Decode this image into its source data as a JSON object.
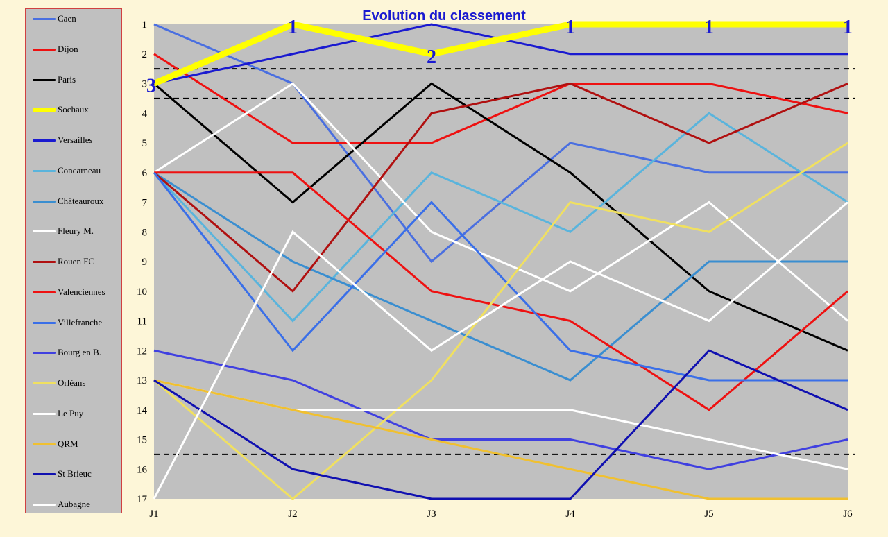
{
  "chart_data": {
    "type": "line",
    "title": "Evolution du classement",
    "x": [
      "J1",
      "J2",
      "J3",
      "J4",
      "J5",
      "J6"
    ],
    "y_ticks": [
      "1",
      "2",
      "3",
      "4",
      "5",
      "6",
      "7",
      "8",
      "9",
      "10",
      "11",
      "12",
      "13",
      "14",
      "15",
      "16",
      "17"
    ],
    "ylim": [
      1,
      17
    ],
    "y_inverted": true,
    "grid": false,
    "legend_position": "left",
    "reference_lines": [
      2.5,
      3.5,
      15.5
    ],
    "series": [
      {
        "name": "Caen",
        "color": "#4a6fe0",
        "values": [
          1,
          3,
          9,
          5,
          6,
          6
        ]
      },
      {
        "name": "Dijon",
        "color": "#ee1111",
        "values": [
          2,
          5,
          5,
          3,
          3,
          4
        ]
      },
      {
        "name": "Paris",
        "color": "#000000",
        "values": [
          3,
          7,
          3,
          6,
          10,
          12
        ]
      },
      {
        "name": "Sochaux",
        "color": "#ffff00",
        "values": [
          3,
          1,
          2,
          1,
          1,
          1
        ],
        "highlight": true,
        "point_labels": [
          "3",
          "1",
          "2",
          "1",
          "1",
          "1"
        ]
      },
      {
        "name": "Versailles",
        "color": "#1a1ad0",
        "values": [
          3,
          2,
          1,
          2,
          2,
          2
        ]
      },
      {
        "name": "Concarneau",
        "color": "#5ab4dc",
        "values": [
          6,
          11,
          6,
          8,
          4,
          7
        ]
      },
      {
        "name": "Châteauroux",
        "color": "#3a8ed0",
        "values": [
          6,
          9,
          11,
          13,
          9,
          9
        ]
      },
      {
        "name": "Fleury M.",
        "color": "#ffffff",
        "values": [
          6,
          3,
          8,
          10,
          7,
          11
        ]
      },
      {
        "name": "Rouen FC",
        "color": "#b01010",
        "values": [
          6,
          10,
          4,
          3,
          5,
          3
        ]
      },
      {
        "name": "Valenciennes",
        "color": "#ee1111",
        "values": [
          6,
          6,
          10,
          11,
          14,
          10
        ]
      },
      {
        "name": "Villefranche",
        "color": "#3a6fe8",
        "values": [
          6,
          12,
          7,
          12,
          13,
          13
        ]
      },
      {
        "name": "Bourg en B.",
        "color": "#4040e0",
        "values": [
          12,
          13,
          15,
          15,
          16,
          15
        ]
      },
      {
        "name": "Orléans",
        "color": "#f0e060",
        "values": [
          13,
          17,
          13,
          7,
          8,
          5
        ]
      },
      {
        "name": "Le Puy",
        "color": "#ffffff",
        "values": [
          13,
          14,
          14,
          14,
          15,
          16
        ]
      },
      {
        "name": "QRM",
        "color": "#f0c030",
        "values": [
          13,
          14,
          15,
          16,
          17,
          17
        ]
      },
      {
        "name": "St Brieuc",
        "color": "#1010b0",
        "values": [
          13,
          16,
          17,
          17,
          12,
          14
        ]
      },
      {
        "name": "Aubagne",
        "color": "#ffffff",
        "values": [
          17,
          8,
          12,
          9,
          11,
          7
        ]
      }
    ]
  }
}
